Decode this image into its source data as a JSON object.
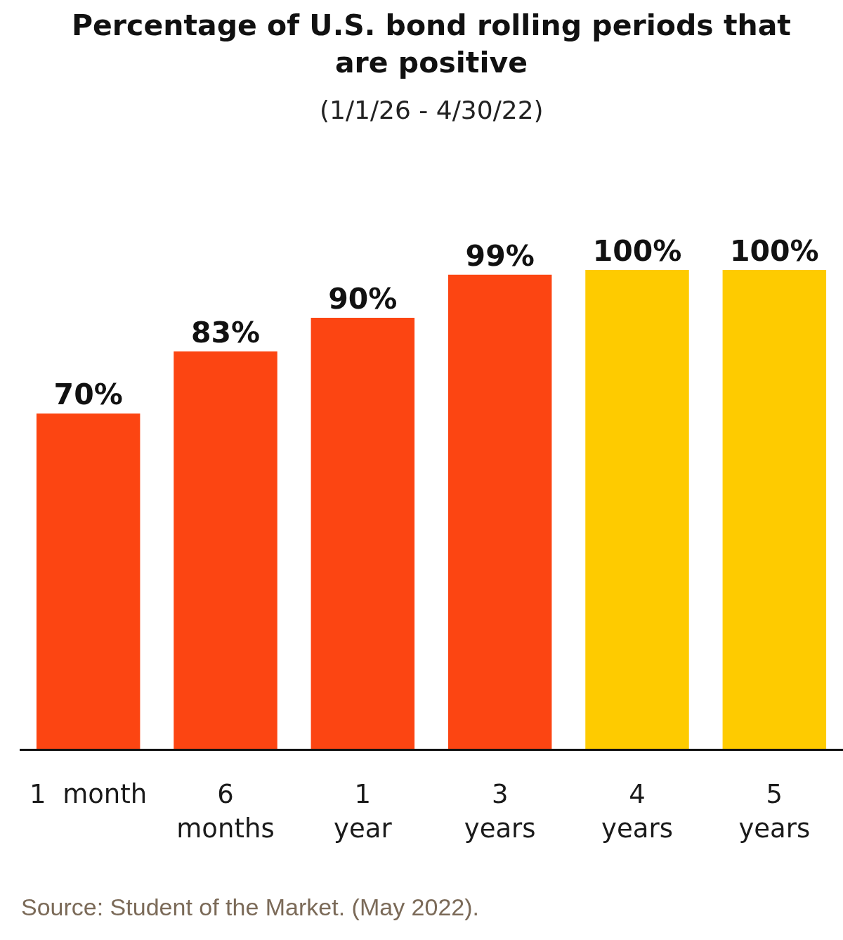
{
  "chart_data": {
    "type": "bar",
    "title": "Percentage of U.S. bond rolling periods that\nare positive",
    "subtitle": "(1/1/26 - 4/30/22)",
    "categories": [
      "1  month",
      "6\nmonths",
      "1\nyear",
      "3\nyears",
      "4\nyears",
      "5\nyears"
    ],
    "values": [
      70,
      83,
      90,
      99,
      100,
      100
    ],
    "colors": [
      "#fc4512",
      "#fc4512",
      "#fc4512",
      "#fc4512",
      "#fecb00",
      "#fecb00"
    ],
    "value_labels": [
      "70%",
      "83%",
      "90%",
      "99%",
      "100%",
      "100%"
    ],
    "annotations": [
      "Source: Student of the Market. (May 2022)."
    ],
    "tick_labels": "x"
  }
}
